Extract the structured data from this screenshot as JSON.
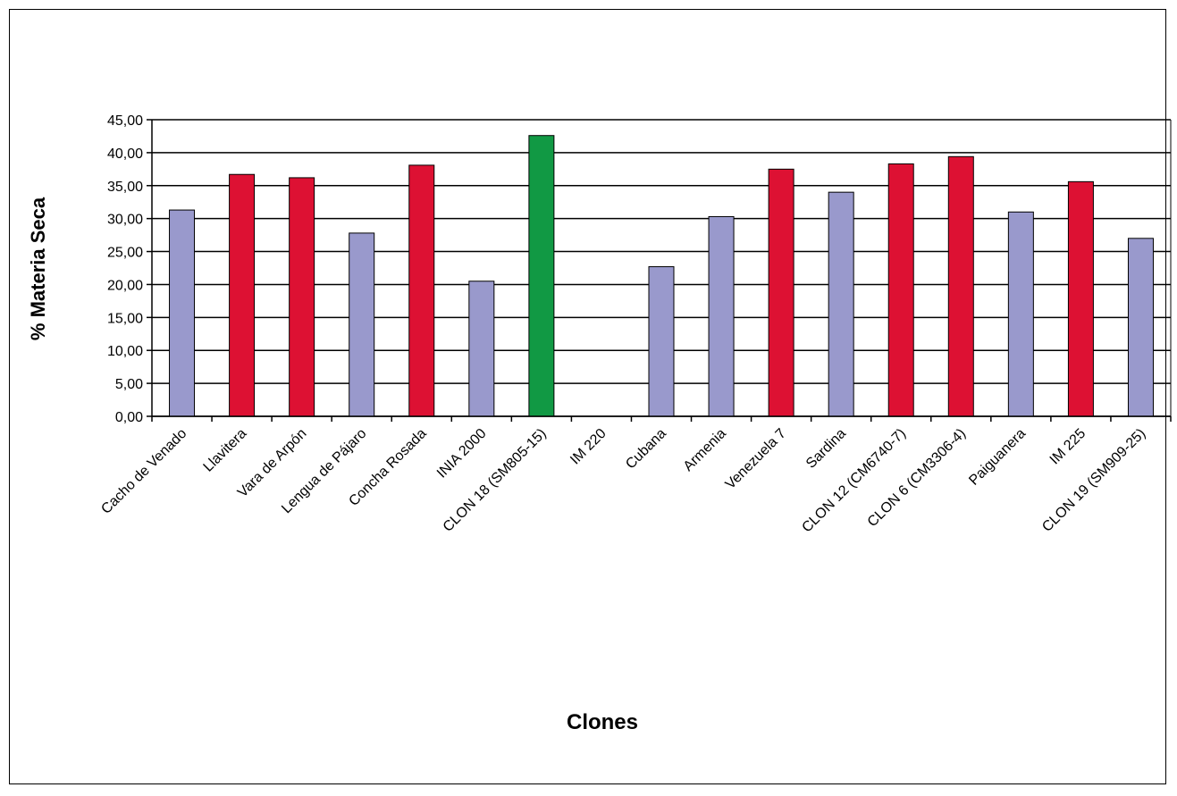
{
  "chart_data": {
    "type": "bar",
    "title": "",
    "xlabel": "Clones",
    "ylabel": "% Materia Seca",
    "ylim": [
      0,
      45
    ],
    "yticks": [
      "0,00",
      "5,00",
      "10,00",
      "15,00",
      "20,00",
      "25,00",
      "30,00",
      "35,00",
      "40,00",
      "45,00"
    ],
    "grid": true,
    "legend": "none",
    "categories": [
      "Cacho de Venado",
      "Llavitera",
      "Vara de Arpón",
      "Lengua de Pájaro",
      "Concha Rosada",
      "INIA 2000",
      "CLON 18 (SM805-15)",
      "IM 220",
      "Cubana",
      "Armenia",
      "Venezuela 7",
      "Sardina",
      "CLON 12 (CM6740-7)",
      "CLON 6 (CM3306-4)",
      "Paiguanera",
      "IM 225",
      "CLON 19 (SM909-25)"
    ],
    "values": [
      31.3,
      36.7,
      36.2,
      27.8,
      38.1,
      20.5,
      42.6,
      0,
      22.7,
      30.3,
      37.5,
      34.0,
      38.3,
      39.4,
      31.0,
      35.6,
      27.0
    ],
    "bar_colors": [
      "#9999cc",
      "#dd1133",
      "#dd1133",
      "#9999cc",
      "#dd1133",
      "#9999cc",
      "#119944",
      "#9999cc",
      "#9999cc",
      "#9999cc",
      "#dd1133",
      "#9999cc",
      "#dd1133",
      "#dd1133",
      "#9999cc",
      "#dd1133",
      "#9999cc"
    ]
  }
}
